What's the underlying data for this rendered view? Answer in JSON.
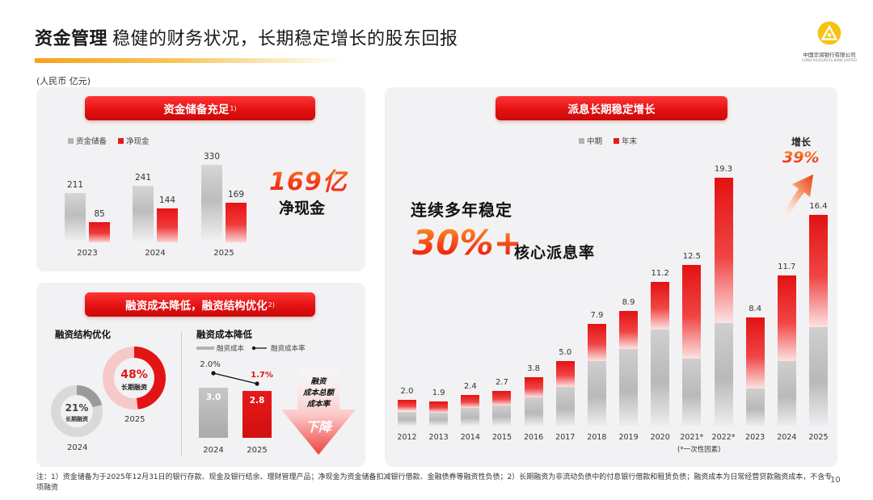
{
  "header": {
    "title_bold": "资金管理",
    "title_rest": "稳健的财务状况，长期稳定增长的股东回报",
    "unit": "(人民币 亿元)",
    "logo_cn": "中国华润银行有限公司",
    "logo_en": "CHINA RESOURCES BANK LIMITED"
  },
  "reserves": {
    "ribbon": "资金储备充足",
    "ribbon_sup": "1)",
    "legend": [
      "资金储备",
      "净现金"
    ],
    "highlight_value": "169亿",
    "highlight_caption": "净现金"
  },
  "financing": {
    "ribbon": "融资成本降低，融资结构优化",
    "ribbon_sup": "2)",
    "structure_title": "融资结构优化",
    "cost_title": "融资成本降低",
    "cost_legend": [
      "融资成本",
      "融资成本率"
    ],
    "donut_2025_pct": "48%",
    "donut_2025_label": "长期融资",
    "donut_2025_year": "2025",
    "donut_2024_pct": "21%",
    "donut_2024_label": "长期融资",
    "donut_2024_year": "2024",
    "arrow_lines": [
      "融资",
      "成本总额",
      "成本率"
    ],
    "arrow_word": "下降"
  },
  "dividend": {
    "ribbon": "派息长期稳定增长",
    "legend": [
      "中期",
      "年末"
    ],
    "headline": "连续多年稳定",
    "pct_big": "30%+",
    "pct_caption": "核心派息率",
    "growth_label": "增长",
    "growth_value": "39%",
    "note_2021": "(*一次性因素)"
  },
  "chart_data": [
    {
      "type": "bar",
      "categories": [
        "2023",
        "2024",
        "2025"
      ],
      "series": [
        {
          "name": "资金储备",
          "values": [
            211,
            241,
            330
          ]
        },
        {
          "name": "净现金",
          "values": [
            85,
            144,
            169
          ]
        }
      ]
    },
    {
      "type": "bar",
      "categories": [
        "2024",
        "2025"
      ],
      "series": [
        {
          "name": "融资成本",
          "values": [
            3.0,
            2.8
          ]
        },
        {
          "name": "融资成本率",
          "values": [
            "2.0%",
            "1.7%"
          ]
        }
      ]
    },
    {
      "type": "pie",
      "series": [
        {
          "name": "长期融资",
          "values": [
            21,
            48
          ],
          "categories": [
            "2024",
            "2025"
          ]
        }
      ]
    },
    {
      "type": "bar",
      "stacked": true,
      "categories": [
        "2012",
        "2013",
        "2014",
        "2015",
        "2016",
        "2017",
        "2018",
        "2019",
        "2020",
        "2021*",
        "2022*",
        "2023",
        "2024",
        "2025"
      ],
      "totals": [
        2.0,
        1.9,
        2.4,
        2.7,
        3.8,
        5.0,
        7.9,
        8.9,
        11.2,
        12.5,
        19.3,
        8.4,
        11.7,
        16.4
      ],
      "series": [
        {
          "name": "中期",
          "values": [
            1.1,
            1.0,
            1.4,
            1.6,
            2.2,
            3.0,
            5.0,
            6.0,
            7.5,
            5.2,
            8.0,
            2.9,
            5.0,
            7.7
          ]
        },
        {
          "name": "年末",
          "values": [
            0.9,
            0.9,
            1.0,
            1.1,
            1.6,
            2.0,
            2.9,
            2.9,
            3.7,
            7.3,
            11.3,
            5.5,
            6.7,
            8.7
          ]
        }
      ]
    }
  ]
}
